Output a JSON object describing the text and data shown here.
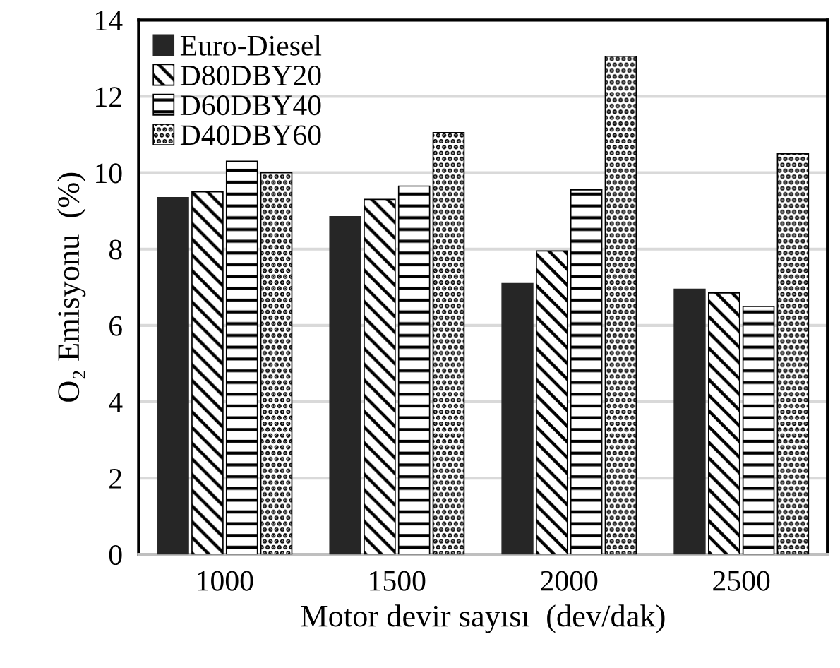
{
  "chart_data": {
    "type": "bar",
    "xlabel": "Motor devir sayısı  (dev/dak)",
    "ylabel": "O₂ Emisyonu  (%)",
    "categories": [
      "1000",
      "1500",
      "2000",
      "2500"
    ],
    "series": [
      {
        "name": "Euro-Diesel",
        "color": "#262626",
        "values": [
          9.35,
          8.85,
          7.1,
          6.95
        ]
      },
      {
        "name": "D80DBY20",
        "color": "#000000",
        "values": [
          9.5,
          9.3,
          7.95,
          6.85
        ]
      },
      {
        "name": "D60DBY40",
        "color": "#000000",
        "values": [
          10.3,
          9.65,
          9.55,
          6.5
        ]
      },
      {
        "name": "D40DBY60",
        "color": "#000000",
        "values": [
          10.0,
          11.05,
          13.05,
          10.5
        ]
      }
    ],
    "ylim": [
      0,
      14
    ],
    "yticks": [
      0,
      2,
      4,
      6,
      8,
      10,
      12,
      14
    ],
    "grid": "y",
    "legend": "top left"
  }
}
